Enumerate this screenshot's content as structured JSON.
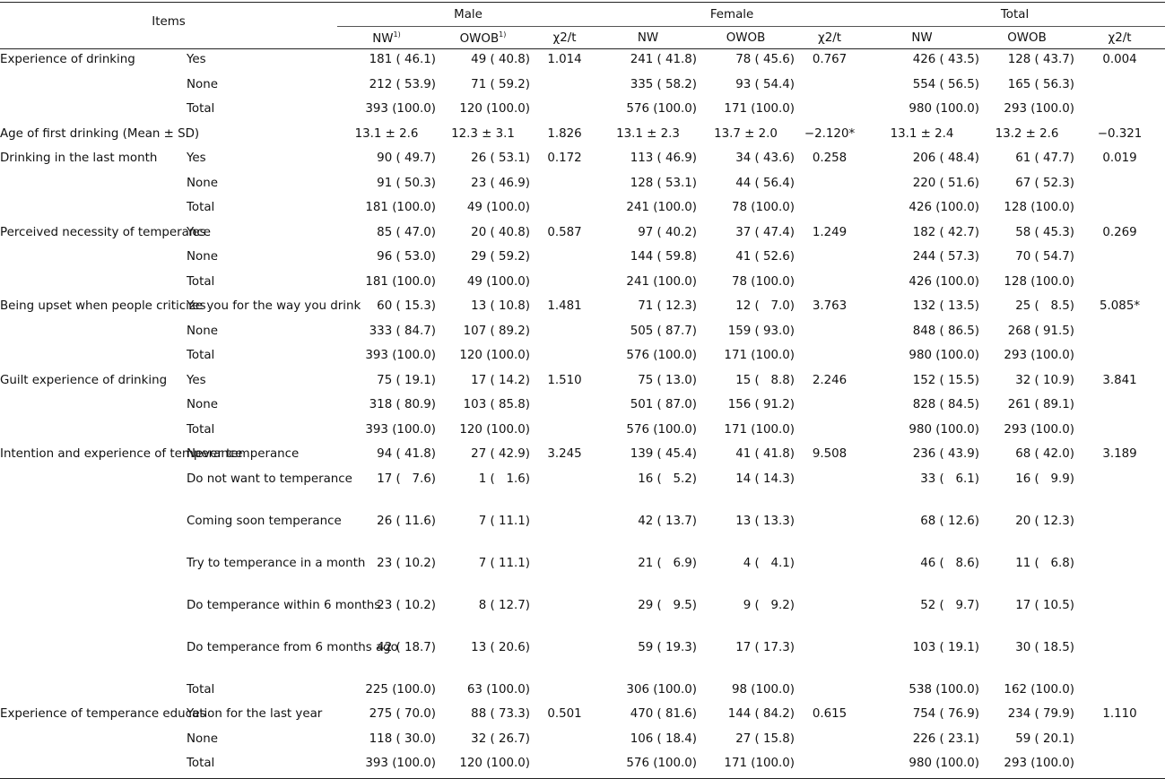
{
  "header": {
    "items": "Items",
    "groups": [
      "Male",
      "Female",
      "Total"
    ],
    "cols_male": [
      "NW",
      "OWOB",
      "χ2/t"
    ],
    "cols": [
      "NW",
      "OWOB",
      "χ2/t"
    ],
    "footnote_mark": "1)"
  },
  "rows": [
    {
      "item": "Experience of drinking",
      "sub": "Yes",
      "m1": "181 ( 46.1)",
      "m2": "49 ( 40.8)",
      "ms": "1.014",
      "f1": "241 ( 41.8)",
      "f2": "78 ( 45.6)",
      "fs": "0.767",
      "t1": "426 ( 43.5)",
      "t2": "128 ( 43.7)",
      "ts": "0.004"
    },
    {
      "item": "",
      "sub": "None",
      "m1": "212 ( 53.9)",
      "m2": "71 ( 59.2)",
      "ms": "",
      "f1": "335 ( 58.2)",
      "f2": "93 ( 54.4)",
      "fs": "",
      "t1": "554 ( 56.5)",
      "t2": "165 ( 56.3)",
      "ts": ""
    },
    {
      "item": "",
      "sub": "Total",
      "m1": "393 (100.0)",
      "m2": "120 (100.0)",
      "ms": "",
      "f1": "576 (100.0)",
      "f2": "171 (100.0)",
      "fs": "",
      "t1": "980 (100.0)",
      "t2": "293 (100.0)",
      "ts": ""
    },
    {
      "item": "Age of first drinking (Mean ± SD)",
      "sub": "",
      "m1": "13.1 ± 2.6",
      "m2": "12.3 ± 3.1",
      "ms": "1.826",
      "f1": "13.1 ± 2.3",
      "f2": "13.7 ± 2.0",
      "fs": "−2.120*",
      "t1": "13.1 ± 2.4",
      "t2": "13.2 ± 2.6",
      "ts": "−0.321"
    },
    {
      "item": "Drinking in the last month",
      "sub": "Yes",
      "m1": "90 ( 49.7)",
      "m2": "26 ( 53.1)",
      "ms": "0.172",
      "f1": "113 ( 46.9)",
      "f2": "34 ( 43.6)",
      "fs": "0.258",
      "t1": "206 ( 48.4)",
      "t2": "61 ( 47.7)",
      "ts": "0.019"
    },
    {
      "item": "",
      "sub": "None",
      "m1": "91 ( 50.3)",
      "m2": "23 ( 46.9)",
      "ms": "",
      "f1": "128 ( 53.1)",
      "f2": "44 ( 56.4)",
      "fs": "",
      "t1": "220 ( 51.6)",
      "t2": "67 ( 52.3)",
      "ts": ""
    },
    {
      "item": "",
      "sub": "Total",
      "m1": "181 (100.0)",
      "m2": "49 (100.0)",
      "ms": "",
      "f1": "241 (100.0)",
      "f2": "78 (100.0)",
      "fs": "",
      "t1": "426 (100.0)",
      "t2": "128 (100.0)",
      "ts": ""
    },
    {
      "item": "Perceived necessity of temperance",
      "sub": "Yes",
      "m1": "85 ( 47.0)",
      "m2": "20 ( 40.8)",
      "ms": "0.587",
      "f1": "97 ( 40.2)",
      "f2": "37 ( 47.4)",
      "fs": "1.249",
      "t1": "182 ( 42.7)",
      "t2": "58 ( 45.3)",
      "ts": "0.269"
    },
    {
      "item": "",
      "sub": "None",
      "m1": "96 ( 53.0)",
      "m2": "29 ( 59.2)",
      "ms": "",
      "f1": "144 ( 59.8)",
      "f2": "41 ( 52.6)",
      "fs": "",
      "t1": "244 ( 57.3)",
      "t2": "70 ( 54.7)",
      "ts": ""
    },
    {
      "item": "",
      "sub": "Total",
      "m1": "181 (100.0)",
      "m2": "49 (100.0)",
      "ms": "",
      "f1": "241 (100.0)",
      "f2": "78 (100.0)",
      "fs": "",
      "t1": "426 (100.0)",
      "t2": "128 (100.0)",
      "ts": ""
    },
    {
      "item": "Being upset when people criticize you for the way you drink",
      "sub": "Yes",
      "m1": "60 ( 15.3)",
      "m2": "13 ( 10.8)",
      "ms": "1.481",
      "f1": "71 ( 12.3)",
      "f2": "12 (   7.0)",
      "fs": "3.763",
      "t1": "132 ( 13.5)",
      "t2": "25 (   8.5)",
      "ts": "5.085*"
    },
    {
      "item": "",
      "sub": "None",
      "m1": "333 ( 84.7)",
      "m2": "107 ( 89.2)",
      "ms": "",
      "f1": "505 ( 87.7)",
      "f2": "159 ( 93.0)",
      "fs": "",
      "t1": "848 ( 86.5)",
      "t2": "268 ( 91.5)",
      "ts": ""
    },
    {
      "item": "",
      "sub": "Total",
      "m1": "393 (100.0)",
      "m2": "120 (100.0)",
      "ms": "",
      "f1": "576 (100.0)",
      "f2": "171 (100.0)",
      "fs": "",
      "t1": "980 (100.0)",
      "t2": "293 (100.0)",
      "ts": ""
    },
    {
      "item": "Guilt experience of drinking",
      "sub": "Yes",
      "m1": "75 ( 19.1)",
      "m2": "17 ( 14.2)",
      "ms": "1.510",
      "f1": "75 ( 13.0)",
      "f2": "15 (   8.8)",
      "fs": "2.246",
      "t1": "152 ( 15.5)",
      "t2": "32 ( 10.9)",
      "ts": "3.841"
    },
    {
      "item": "",
      "sub": "None",
      "m1": "318 ( 80.9)",
      "m2": "103 ( 85.8)",
      "ms": "",
      "f1": "501 ( 87.0)",
      "f2": "156 ( 91.2)",
      "fs": "",
      "t1": "828 ( 84.5)",
      "t2": "261 ( 89.1)",
      "ts": ""
    },
    {
      "item": "",
      "sub": "Total",
      "m1": "393 (100.0)",
      "m2": "120 (100.0)",
      "ms": "",
      "f1": "576 (100.0)",
      "f2": "171 (100.0)",
      "fs": "",
      "t1": "980 (100.0)",
      "t2": "293 (100.0)",
      "ts": ""
    },
    {
      "item": "Intention and experience of temperance",
      "sub": "Never temperance",
      "m1": "94 ( 41.8)",
      "m2": "27 ( 42.9)",
      "ms": "3.245",
      "f1": "139 ( 45.4)",
      "f2": "41 ( 41.8)",
      "fs": "9.508",
      "t1": "236 ( 43.9)",
      "t2": "68 ( 42.0)",
      "ts": "3.189"
    },
    {
      "item": "",
      "sub": "Do not want to temperance",
      "m1": "17 (   7.6)",
      "m2": "1 (   1.6)",
      "ms": "",
      "f1": "16 (   5.2)",
      "f2": "14 ( 14.3)",
      "fs": "",
      "t1": "33 (   6.1)",
      "t2": "16 (   9.9)",
      "ts": "",
      "tall": true
    },
    {
      "item": "",
      "sub": "Coming soon temperance",
      "m1": "26 ( 11.6)",
      "m2": "7 ( 11.1)",
      "ms": "",
      "f1": "42 ( 13.7)",
      "f2": "13 ( 13.3)",
      "fs": "",
      "t1": "68 ( 12.6)",
      "t2": "20 ( 12.3)",
      "ts": "",
      "tall": true
    },
    {
      "item": "",
      "sub": "Try to temperance in a month",
      "m1": "23 ( 10.2)",
      "m2": "7 ( 11.1)",
      "ms": "",
      "f1": "21 (   6.9)",
      "f2": "4 (   4.1)",
      "fs": "",
      "t1": "46 (   8.6)",
      "t2": "11 (   6.8)",
      "ts": "",
      "tall": true
    },
    {
      "item": "",
      "sub": "Do temperance within 6 months",
      "m1": "23 ( 10.2)",
      "m2": "8 ( 12.7)",
      "ms": "",
      "f1": "29 (   9.5)",
      "f2": "9 (   9.2)",
      "fs": "",
      "t1": "52 (   9.7)",
      "t2": "17 ( 10.5)",
      "ts": "",
      "tall": true
    },
    {
      "item": "",
      "sub": "Do temperance from 6 months ago",
      "m1": "42 ( 18.7)",
      "m2": "13 ( 20.6)",
      "ms": "",
      "f1": "59 ( 19.3)",
      "f2": "17 ( 17.3)",
      "fs": "",
      "t1": "103 ( 19.1)",
      "t2": "30 ( 18.5)",
      "ts": "",
      "tall": true
    },
    {
      "item": "",
      "sub": "Total",
      "m1": "225 (100.0)",
      "m2": "63 (100.0)",
      "ms": "",
      "f1": "306 (100.0)",
      "f2": "98 (100.0)",
      "fs": "",
      "t1": "538 (100.0)",
      "t2": "162 (100.0)",
      "ts": ""
    },
    {
      "item": "Experience of temperance education for the last year",
      "sub": "Yes",
      "m1": "275 ( 70.0)",
      "m2": "88 ( 73.3)",
      "ms": "0.501",
      "f1": "470 ( 81.6)",
      "f2": "144 ( 84.2)",
      "fs": "0.615",
      "t1": "754 ( 76.9)",
      "t2": "234 ( 79.9)",
      "ts": "1.110"
    },
    {
      "item": "",
      "sub": "None",
      "m1": "118 ( 30.0)",
      "m2": "32 ( 26.7)",
      "ms": "",
      "f1": "106 ( 18.4)",
      "f2": "27 ( 15.8)",
      "fs": "",
      "t1": "226 ( 23.1)",
      "t2": "59 ( 20.1)",
      "ts": ""
    },
    {
      "item": "",
      "sub": "Total",
      "m1": "393 (100.0)",
      "m2": "120 (100.0)",
      "ms": "",
      "f1": "576 (100.0)",
      "f2": "171 (100.0)",
      "fs": "",
      "t1": "980 (100.0)",
      "t2": "293 (100.0)",
      "ts": ""
    }
  ]
}
